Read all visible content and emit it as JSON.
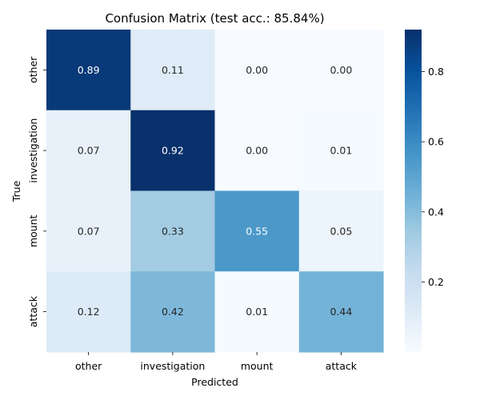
{
  "chart_data": {
    "type": "heatmap",
    "title": "Confusion Matrix (test acc.: 85.84%)",
    "xlabel": "Predicted",
    "ylabel": "True",
    "x_categories": [
      "other",
      "investigation",
      "mount",
      "attack"
    ],
    "y_categories": [
      "other",
      "investigation",
      "mount",
      "attack"
    ],
    "values": [
      [
        0.89,
        0.11,
        0.0,
        0.0
      ],
      [
        0.07,
        0.92,
        0.0,
        0.01
      ],
      [
        0.07,
        0.33,
        0.55,
        0.05
      ],
      [
        0.12,
        0.42,
        0.01,
        0.44
      ]
    ],
    "value_labels": [
      [
        "0.89",
        "0.11",
        "0.00",
        "0.00"
      ],
      [
        "0.07",
        "0.92",
        "0.00",
        "0.01"
      ],
      [
        "0.07",
        "0.33",
        "0.55",
        "0.05"
      ],
      [
        "0.12",
        "0.42",
        "0.01",
        "0.44"
      ]
    ],
    "colormap": "Blues",
    "color_range": [
      0.0,
      0.92
    ],
    "colorbar_ticks": [
      0.2,
      0.4,
      0.6,
      0.8
    ],
    "colorbar_tick_labels": [
      "0.2",
      "0.4",
      "0.6",
      "0.8"
    ],
    "grid": false,
    "legend": "colorbar-right"
  }
}
